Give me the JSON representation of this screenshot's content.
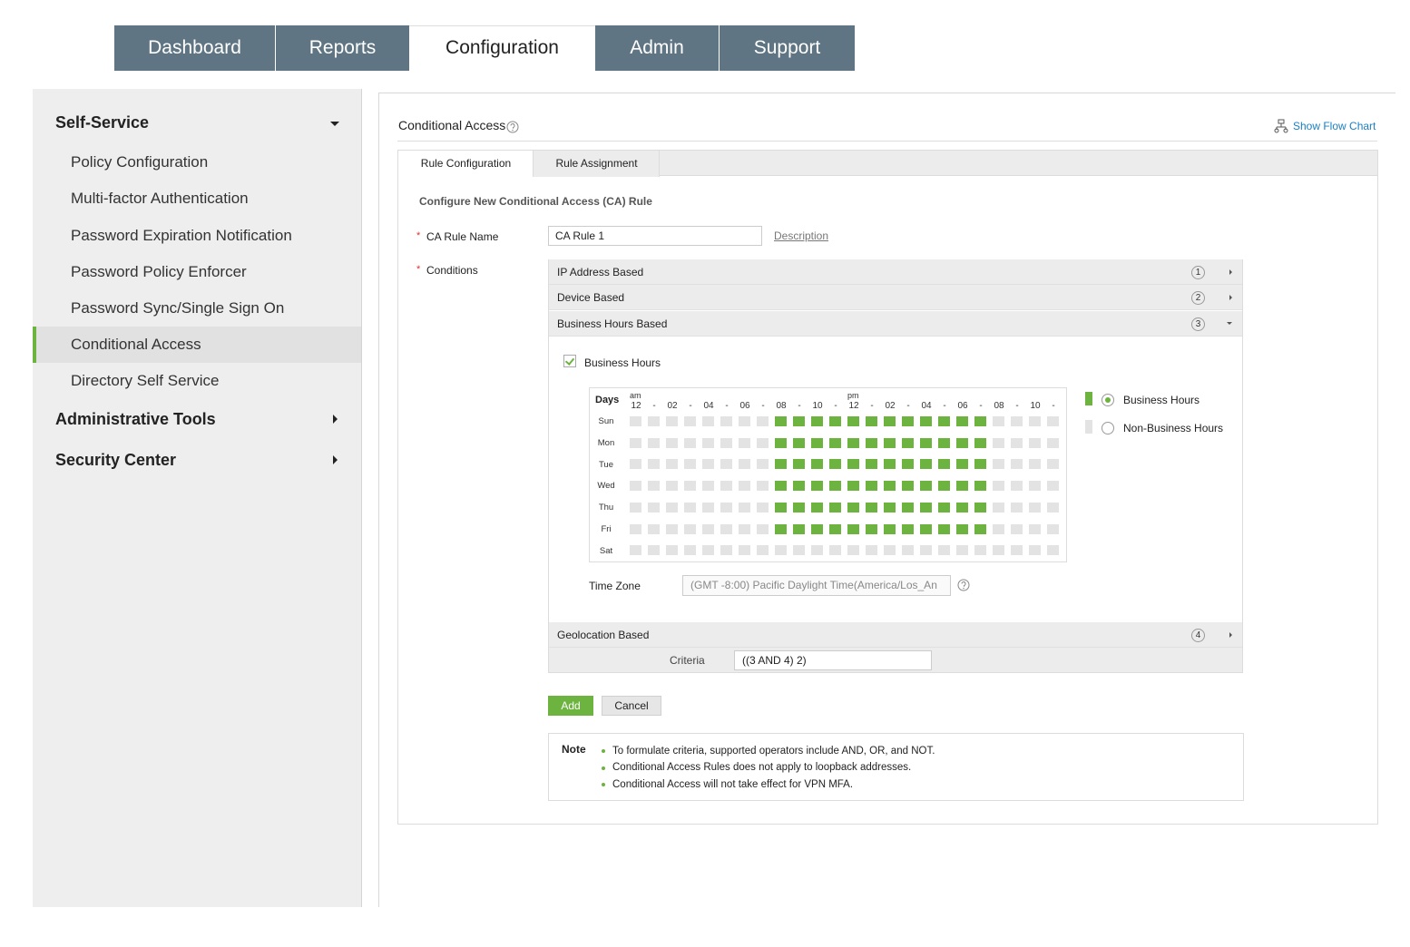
{
  "tabs": [
    "Dashboard",
    "Reports",
    "Configuration",
    "Admin",
    "Support"
  ],
  "active_tab": 2,
  "sidebar": {
    "active_section": 0,
    "active_item": 5,
    "sections": [
      {
        "title": "Self-Service",
        "items": [
          "Policy Configuration",
          "Multi-factor Authentication",
          "Password Expiration Notification",
          "Password Policy Enforcer",
          "Password Sync/Single Sign On",
          "Conditional Access",
          "Directory Self Service"
        ]
      },
      {
        "title": "Administrative Tools",
        "items": []
      },
      {
        "title": "Security Center",
        "items": []
      }
    ]
  },
  "panel": {
    "title": "Conditional Access",
    "flow_chart_link": "Show Flow Chart",
    "subtabs": [
      "Rule Configuration",
      "Rule Assignment"
    ],
    "active_subtab": 0,
    "heading": "Configure New Conditional Access (CA) Rule",
    "rule_name_label": "CA Rule Name",
    "rule_name_value": "CA Rule 1",
    "description_link": "Description",
    "conditions_label": "Conditions",
    "required_mark": "*",
    "conditions": [
      {
        "label": "IP Address Based",
        "number": "1"
      },
      {
        "label": "Device Based",
        "number": "2"
      },
      {
        "label": "Business Hours Based",
        "number": "3"
      },
      {
        "label": "Geolocation Based",
        "number": "4"
      }
    ],
    "expanded_condition": 2,
    "business_hours": {
      "checkbox_label": "Business Hours",
      "checked": true,
      "days_label": "Days",
      "am": "am",
      "pm": "pm",
      "hours": [
        "12",
        "-",
        "02",
        "-",
        "04",
        "-",
        "06",
        "-",
        "08",
        "-",
        "10",
        "-",
        "12",
        "-",
        "02",
        "-",
        "04",
        "-",
        "06",
        "-",
        "08",
        "-",
        "10",
        "-"
      ],
      "days": [
        "Sun",
        "Mon",
        "Tue",
        "Wed",
        "Thu",
        "Fri",
        "Sat"
      ],
      "selected_columns": [
        [
          8,
          19
        ],
        [
          8,
          19
        ],
        [
          8,
          19
        ],
        [
          8,
          19
        ],
        [
          8,
          19
        ],
        [
          8,
          19
        ],
        null
      ],
      "colors": {
        "business": "#6cb33f",
        "non_business": "#e3e3e3"
      },
      "legend": [
        "Business Hours",
        "Non-Business Hours"
      ],
      "legend_selected": 0,
      "time_zone_label": "Time Zone",
      "time_zone_value": "(GMT -8:00) Pacific Daylight Time(America/Los_An"
    },
    "criteria_label": "Criteria",
    "criteria_value": "((3 AND 4) 2)",
    "buttons": [
      "Add",
      "Cancel"
    ],
    "note": {
      "title": "Note",
      "items": [
        "To formulate criteria, supported operators include AND, OR, and NOT.",
        "Conditional Access Rules does not apply to loopback addresses.",
        "Conditional Access will not take effect for VPN MFA."
      ]
    }
  }
}
